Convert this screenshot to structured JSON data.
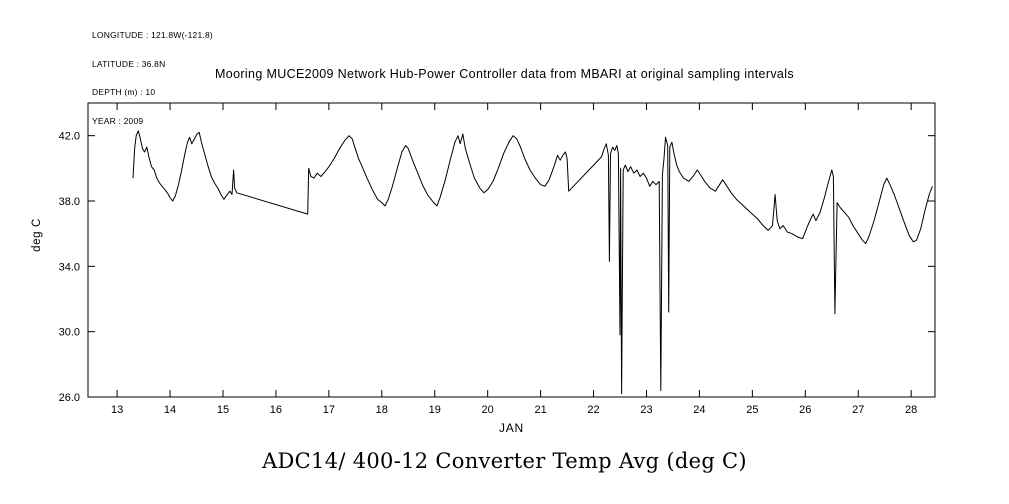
{
  "metadata": {
    "lines": [
      "LONGITUDE : 121.8W(-121.8)",
      "LATITUDE : 36.8N",
      "DEPTH (m) : 10",
      "YEAR : 2009"
    ]
  },
  "chart_data": {
    "type": "line",
    "title": "Mooring MUCE2009 Network Hub-Power Controller data from MBARI at original sampling intervals",
    "caption": "ADC14/ 400-12 Converter Temp Avg (deg C)",
    "xlabel": "JAN",
    "ylabel": "deg C",
    "xlim": [
      12.45,
      28.45
    ],
    "ylim": [
      26,
      44
    ],
    "xticks": [
      13,
      14,
      15,
      16,
      17,
      18,
      19,
      20,
      21,
      22,
      23,
      24,
      25,
      26,
      27,
      28
    ],
    "xtick_labels": [
      "13",
      "14",
      "15",
      "16",
      "17",
      "18",
      "19",
      "20",
      "21",
      "22",
      "23",
      "24",
      "25",
      "26",
      "27",
      "28"
    ],
    "yticks": [
      26,
      30,
      34,
      38,
      42
    ],
    "ytick_labels": [
      "26.0",
      "30.0",
      "34.0",
      "38.0",
      "42.0"
    ],
    "grid": false,
    "legend": "none",
    "line_color": "#000000",
    "background_color": "#ffffff",
    "series": [
      {
        "name": "ADC14/ 400-12 Converter Temp Avg (deg C)",
        "points": [
          [
            13.3,
            39.4
          ],
          [
            13.33,
            41.2
          ],
          [
            13.36,
            42.0
          ],
          [
            13.4,
            42.3
          ],
          [
            13.44,
            41.8
          ],
          [
            13.48,
            41.2
          ],
          [
            13.52,
            41.0
          ],
          [
            13.56,
            41.3
          ],
          [
            13.6,
            40.7
          ],
          [
            13.65,
            40.1
          ],
          [
            13.7,
            39.9
          ],
          [
            13.75,
            39.4
          ],
          [
            13.8,
            39.1
          ],
          [
            13.85,
            38.9
          ],
          [
            13.9,
            38.7
          ],
          [
            13.95,
            38.5
          ],
          [
            14.0,
            38.2
          ],
          [
            14.05,
            38.0
          ],
          [
            14.1,
            38.3
          ],
          [
            14.16,
            39.0
          ],
          [
            14.22,
            39.9
          ],
          [
            14.28,
            40.9
          ],
          [
            14.33,
            41.6
          ],
          [
            14.37,
            41.9
          ],
          [
            14.41,
            41.5
          ],
          [
            14.46,
            41.8
          ],
          [
            14.51,
            42.1
          ],
          [
            14.55,
            42.2
          ],
          [
            14.6,
            41.5
          ],
          [
            14.66,
            40.8
          ],
          [
            14.72,
            40.1
          ],
          [
            14.78,
            39.5
          ],
          [
            14.84,
            39.1
          ],
          [
            14.9,
            38.8
          ],
          [
            14.96,
            38.4
          ],
          [
            15.02,
            38.1
          ],
          [
            15.08,
            38.4
          ],
          [
            15.13,
            38.6
          ],
          [
            15.17,
            38.4
          ],
          [
            15.2,
            39.9
          ],
          [
            15.22,
            38.8
          ],
          [
            15.26,
            38.5
          ],
          [
            16.6,
            37.2
          ],
          [
            16.62,
            40.0
          ],
          [
            16.66,
            39.5
          ],
          [
            16.72,
            39.4
          ],
          [
            16.78,
            39.7
          ],
          [
            16.85,
            39.5
          ],
          [
            16.93,
            39.8
          ],
          [
            17.0,
            40.1
          ],
          [
            17.1,
            40.6
          ],
          [
            17.2,
            41.2
          ],
          [
            17.3,
            41.7
          ],
          [
            17.38,
            42.0
          ],
          [
            17.44,
            41.8
          ],
          [
            17.5,
            41.2
          ],
          [
            17.56,
            40.6
          ],
          [
            17.63,
            40.1
          ],
          [
            17.72,
            39.4
          ],
          [
            17.82,
            38.7
          ],
          [
            17.92,
            38.1
          ],
          [
            18.0,
            37.9
          ],
          [
            18.06,
            37.7
          ],
          [
            18.12,
            38.1
          ],
          [
            18.2,
            38.9
          ],
          [
            18.3,
            40.1
          ],
          [
            18.38,
            41.0
          ],
          [
            18.45,
            41.4
          ],
          [
            18.5,
            41.2
          ],
          [
            18.58,
            40.5
          ],
          [
            18.68,
            39.7
          ],
          [
            18.78,
            38.9
          ],
          [
            18.88,
            38.3
          ],
          [
            18.98,
            37.9
          ],
          [
            19.04,
            37.7
          ],
          [
            19.1,
            38.2
          ],
          [
            19.2,
            39.3
          ],
          [
            19.3,
            40.6
          ],
          [
            19.38,
            41.6
          ],
          [
            19.44,
            42.0
          ],
          [
            19.48,
            41.5
          ],
          [
            19.53,
            42.1
          ],
          [
            19.58,
            41.2
          ],
          [
            19.66,
            40.3
          ],
          [
            19.75,
            39.4
          ],
          [
            19.85,
            38.8
          ],
          [
            19.93,
            38.5
          ],
          [
            20.0,
            38.7
          ],
          [
            20.1,
            39.2
          ],
          [
            20.2,
            40.0
          ],
          [
            20.3,
            40.9
          ],
          [
            20.4,
            41.6
          ],
          [
            20.48,
            42.0
          ],
          [
            20.55,
            41.8
          ],
          [
            20.62,
            41.3
          ],
          [
            20.7,
            40.6
          ],
          [
            20.8,
            39.9
          ],
          [
            20.9,
            39.4
          ],
          [
            21.0,
            39.0
          ],
          [
            21.08,
            38.9
          ],
          [
            21.16,
            39.3
          ],
          [
            21.25,
            40.1
          ],
          [
            21.32,
            40.8
          ],
          [
            21.37,
            40.5
          ],
          [
            21.42,
            40.8
          ],
          [
            21.47,
            41.0
          ],
          [
            21.5,
            40.6
          ],
          [
            21.53,
            38.6
          ],
          [
            22.15,
            40.7
          ],
          [
            22.2,
            41.2
          ],
          [
            22.24,
            41.5
          ],
          [
            22.28,
            40.8
          ],
          [
            22.3,
            34.3
          ],
          [
            22.32,
            40.9
          ],
          [
            22.36,
            41.3
          ],
          [
            22.4,
            41.1
          ],
          [
            22.44,
            41.4
          ],
          [
            22.47,
            40.9
          ],
          [
            22.5,
            29.8
          ],
          [
            22.51,
            40.0
          ],
          [
            22.53,
            26.2
          ],
          [
            22.56,
            39.9
          ],
          [
            22.6,
            40.2
          ],
          [
            22.65,
            39.8
          ],
          [
            22.7,
            40.1
          ],
          [
            22.76,
            39.7
          ],
          [
            22.82,
            39.9
          ],
          [
            22.88,
            39.5
          ],
          [
            22.94,
            39.7
          ],
          [
            23.0,
            39.4
          ],
          [
            23.06,
            38.9
          ],
          [
            23.12,
            39.2
          ],
          [
            23.18,
            39.0
          ],
          [
            23.24,
            39.2
          ],
          [
            23.27,
            26.4
          ],
          [
            23.3,
            39.6
          ],
          [
            23.33,
            40.6
          ],
          [
            23.36,
            41.9
          ],
          [
            23.4,
            41.4
          ],
          [
            23.42,
            31.2
          ],
          [
            23.44,
            41.3
          ],
          [
            23.48,
            41.6
          ],
          [
            23.52,
            40.9
          ],
          [
            23.57,
            40.2
          ],
          [
            23.62,
            39.8
          ],
          [
            23.7,
            39.4
          ],
          [
            23.8,
            39.2
          ],
          [
            23.9,
            39.6
          ],
          [
            23.96,
            39.9
          ],
          [
            24.02,
            39.6
          ],
          [
            24.1,
            39.2
          ],
          [
            24.2,
            38.8
          ],
          [
            24.3,
            38.6
          ],
          [
            24.38,
            39.0
          ],
          [
            24.44,
            39.3
          ],
          [
            24.5,
            39.0
          ],
          [
            24.6,
            38.5
          ],
          [
            24.7,
            38.1
          ],
          [
            24.8,
            37.8
          ],
          [
            24.9,
            37.5
          ],
          [
            25.0,
            37.2
          ],
          [
            25.1,
            36.9
          ],
          [
            25.2,
            36.5
          ],
          [
            25.3,
            36.2
          ],
          [
            25.38,
            36.5
          ],
          [
            25.43,
            38.4
          ],
          [
            25.47,
            36.8
          ],
          [
            25.52,
            36.3
          ],
          [
            25.58,
            36.5
          ],
          [
            25.66,
            36.1
          ],
          [
            25.75,
            36.0
          ],
          [
            25.85,
            35.8
          ],
          [
            25.95,
            35.7
          ],
          [
            26.02,
            36.3
          ],
          [
            26.1,
            36.9
          ],
          [
            26.15,
            37.2
          ],
          [
            26.2,
            36.8
          ],
          [
            26.28,
            37.3
          ],
          [
            26.36,
            38.2
          ],
          [
            26.44,
            39.2
          ],
          [
            26.5,
            39.9
          ],
          [
            26.53,
            39.5
          ],
          [
            26.56,
            31.1
          ],
          [
            26.6,
            37.9
          ],
          [
            26.66,
            37.6
          ],
          [
            26.74,
            37.3
          ],
          [
            26.82,
            37.0
          ],
          [
            26.9,
            36.5
          ],
          [
            27.0,
            36.0
          ],
          [
            27.08,
            35.6
          ],
          [
            27.14,
            35.4
          ],
          [
            27.2,
            35.8
          ],
          [
            27.3,
            36.8
          ],
          [
            27.4,
            38.0
          ],
          [
            27.48,
            39.0
          ],
          [
            27.54,
            39.4
          ],
          [
            27.6,
            39.0
          ],
          [
            27.68,
            38.4
          ],
          [
            27.78,
            37.5
          ],
          [
            27.88,
            36.6
          ],
          [
            27.96,
            35.9
          ],
          [
            28.04,
            35.5
          ],
          [
            28.1,
            35.6
          ],
          [
            28.18,
            36.3
          ],
          [
            28.26,
            37.4
          ],
          [
            28.34,
            38.4
          ],
          [
            28.4,
            38.9
          ]
        ]
      }
    ]
  }
}
